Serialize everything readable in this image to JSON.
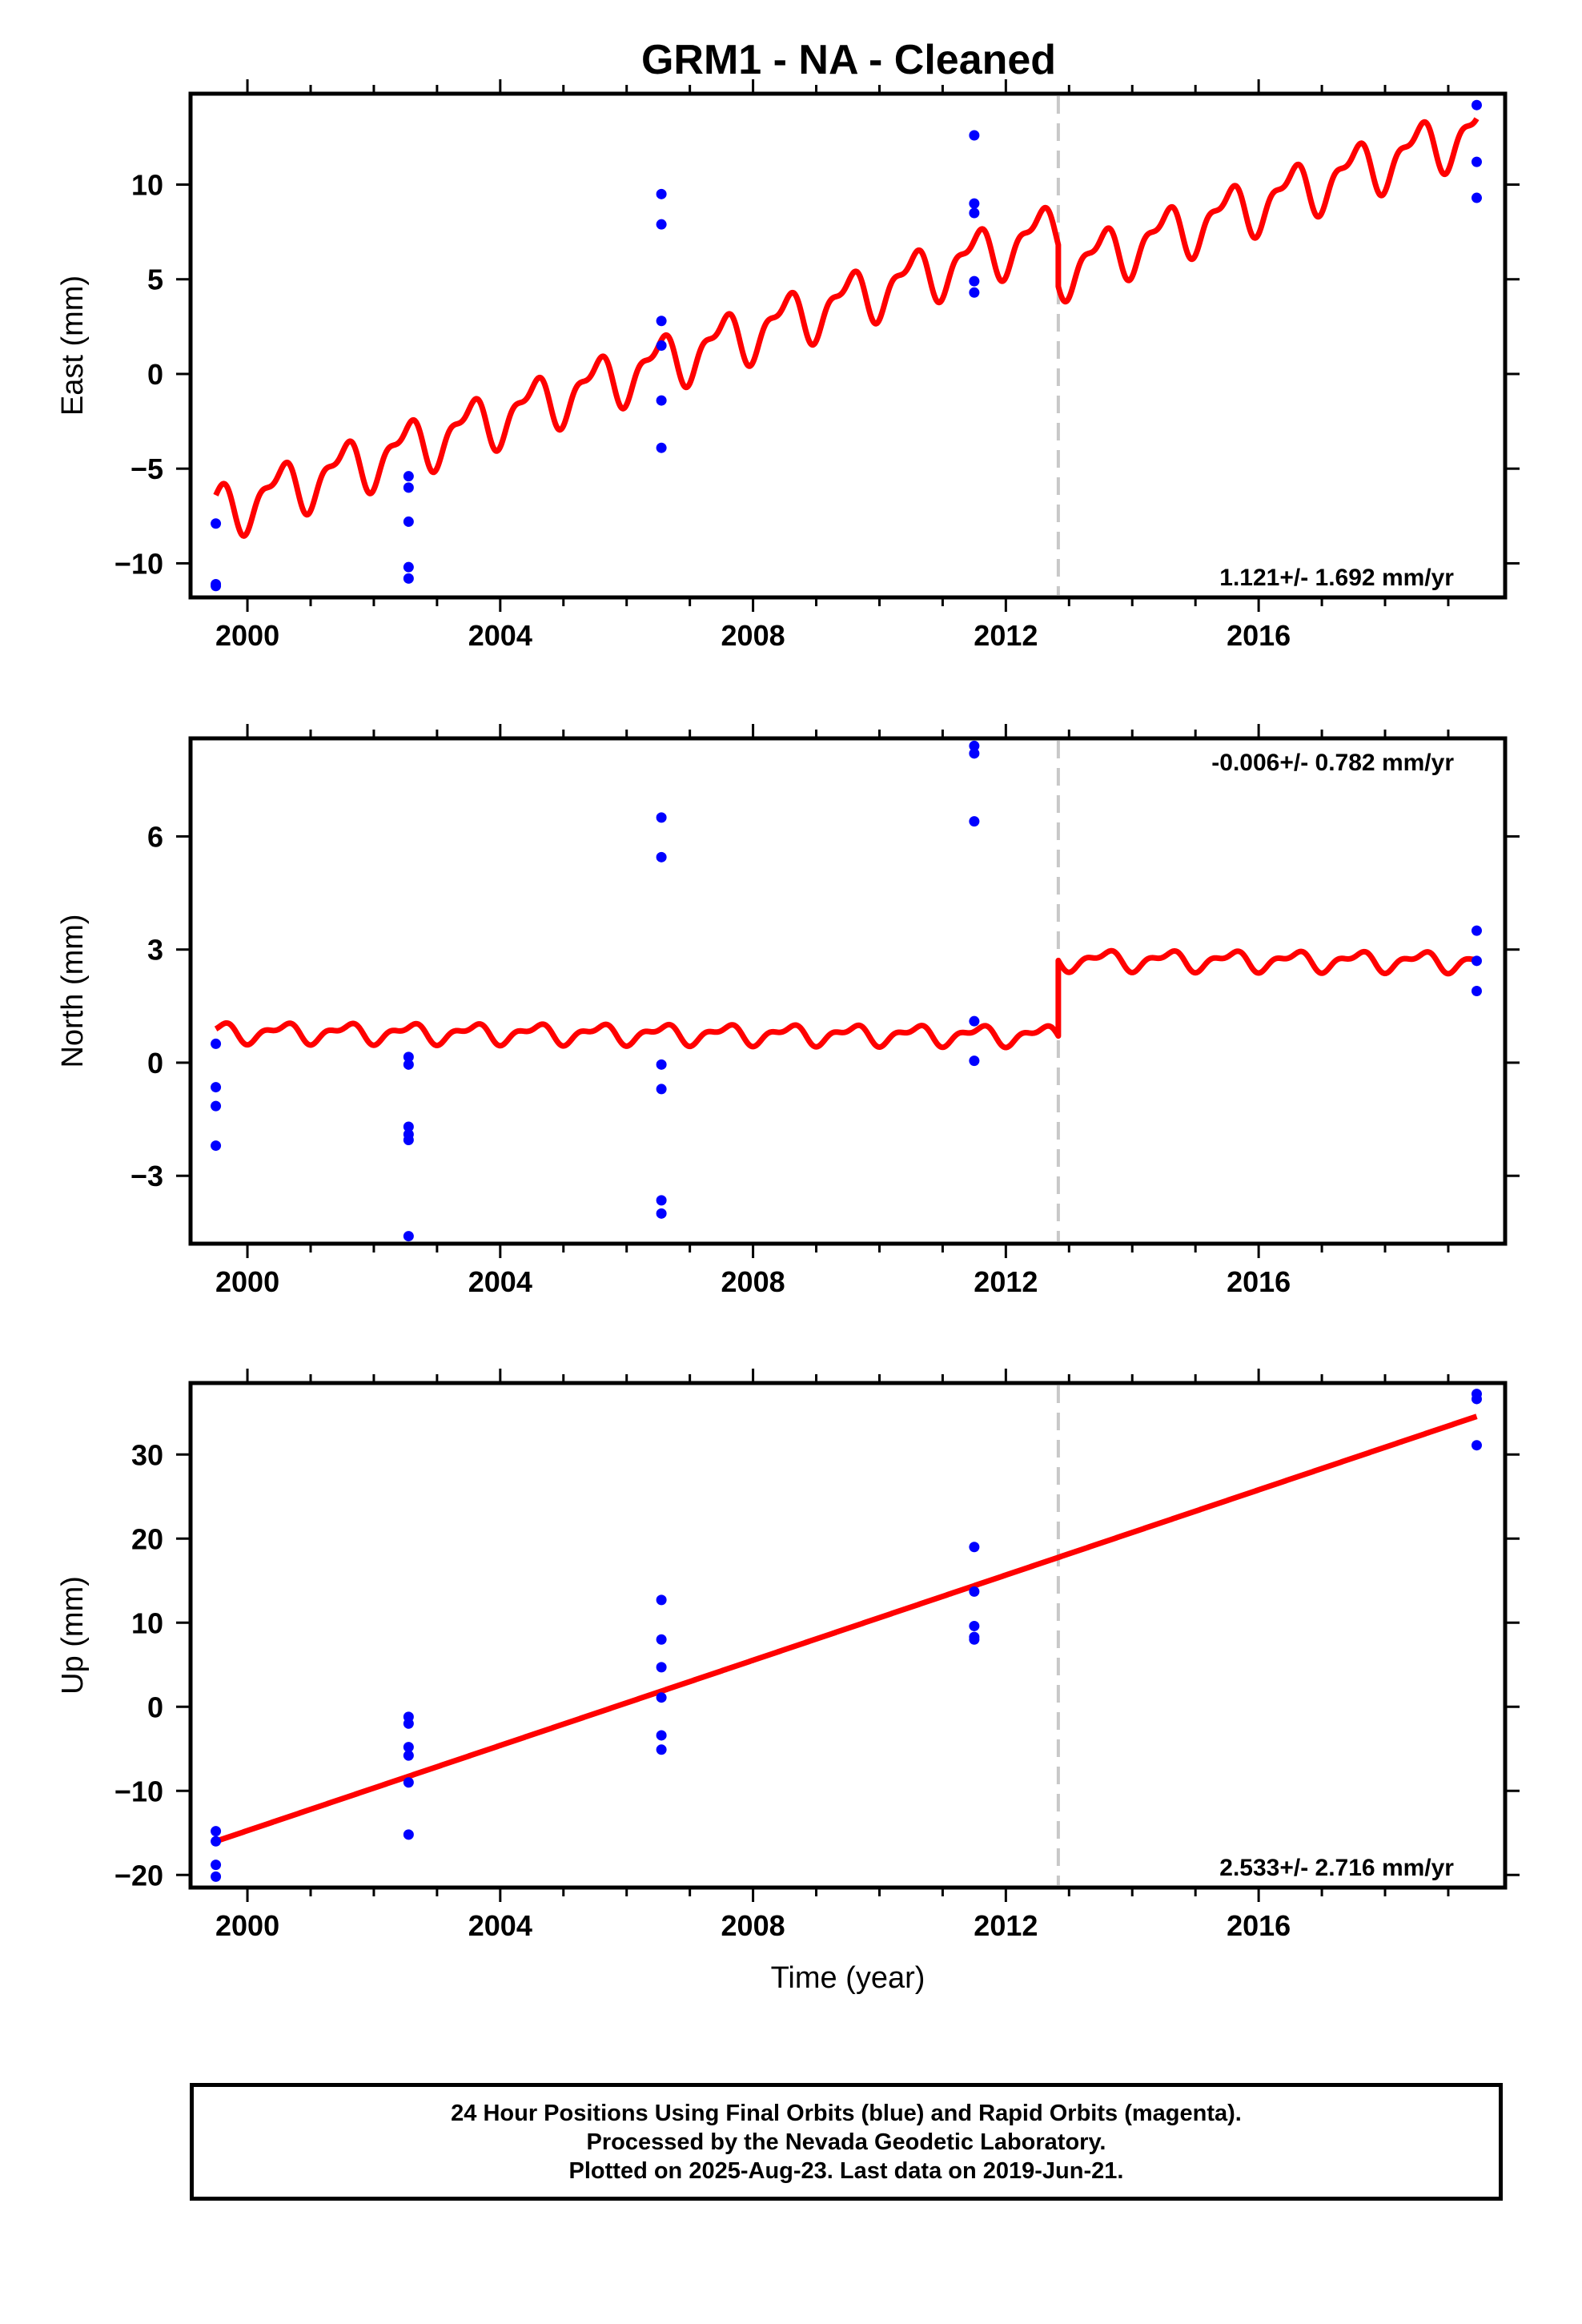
{
  "title": "GRM1  - NA - Cleaned",
  "footer": {
    "line1": "24 Hour Positions Using Final Orbits (blue) and Rapid Orbits (magenta).",
    "line2": "Processed by the Nevada Geodetic Laboratory.",
    "line3": "Plotted on 2025-Aug-23. Last data on 2019-Jun-21."
  },
  "colors": {
    "final_orbit_points": "#0000ff",
    "model_fit": "#ff0000",
    "offset_marker": "#c8c8c8"
  },
  "chart_data": [
    {
      "type": "scatter",
      "panel": "east",
      "ylabel": "East (mm)",
      "xlabel": "",
      "xlim": [
        1999.1,
        2019.9
      ],
      "ylim": [
        -11.8,
        14.8
      ],
      "xticks": [
        2000,
        2004,
        2008,
        2012,
        2016
      ],
      "yticks": [
        -10,
        -5,
        0,
        5,
        10
      ],
      "ytick_labels": [
        "−10",
        "−5",
        "0",
        "5",
        "10"
      ],
      "annotation": "1.121+/- 1.692 mm/yr",
      "annotation_position": "bottom-right",
      "offset_date": 2012.83,
      "points": [
        [
          1999.5,
          -7.9
        ],
        [
          1999.5,
          -11.2
        ],
        [
          1999.5,
          -11.1
        ],
        [
          2002.55,
          -5.4
        ],
        [
          2002.55,
          -6.0
        ],
        [
          2002.55,
          -7.8
        ],
        [
          2002.55,
          -10.2
        ],
        [
          2002.55,
          -10.8
        ],
        [
          2006.55,
          9.5
        ],
        [
          2006.55,
          7.9
        ],
        [
          2006.55,
          2.8
        ],
        [
          2006.55,
          1.5
        ],
        [
          2006.55,
          -1.4
        ],
        [
          2006.55,
          -3.9
        ],
        [
          2011.5,
          12.6
        ],
        [
          2011.5,
          9.0
        ],
        [
          2011.5,
          8.5
        ],
        [
          2011.5,
          4.9
        ],
        [
          2011.5,
          4.3
        ],
        [
          2019.45,
          14.2
        ],
        [
          2019.45,
          11.2
        ],
        [
          2019.45,
          9.3
        ]
      ],
      "model": {
        "rate_mm_per_yr": 1.121,
        "value_at_start": -7.3,
        "annual_amplitude": 1.25,
        "annual_phase_year": 0.25,
        "semiannual_amplitude": 0.6,
        "semiannual_phase_year": 0.05,
        "step_mm": -2.2,
        "start": 1999.5,
        "end": 2019.45
      }
    },
    {
      "type": "scatter",
      "panel": "north",
      "ylabel": "North (mm)",
      "xlabel": "",
      "xlim": [
        1999.1,
        2019.9
      ],
      "ylim": [
        -4.8,
        8.6
      ],
      "xticks": [
        2000,
        2004,
        2008,
        2012,
        2016
      ],
      "yticks": [
        -3,
        0,
        3,
        6
      ],
      "ytick_labels": [
        "−3",
        "0",
        "3",
        "6"
      ],
      "annotation": "-0.006+/- 0.782 mm/yr",
      "annotation_position": "top-right",
      "offset_date": 2012.83,
      "points": [
        [
          1999.5,
          0.5
        ],
        [
          1999.5,
          -0.65
        ],
        [
          1999.5,
          -1.15
        ],
        [
          1999.5,
          -2.2
        ],
        [
          2002.55,
          0.15
        ],
        [
          2002.55,
          -0.05
        ],
        [
          2002.55,
          -1.7
        ],
        [
          2002.55,
          -1.9
        ],
        [
          2002.55,
          -2.05
        ],
        [
          2002.55,
          -4.6
        ],
        [
          2006.55,
          6.5
        ],
        [
          2006.55,
          5.45
        ],
        [
          2006.55,
          -0.05
        ],
        [
          2006.55,
          -0.7
        ],
        [
          2006.55,
          -3.65
        ],
        [
          2006.55,
          -4.0
        ],
        [
          2011.5,
          8.4
        ],
        [
          2011.5,
          8.2
        ],
        [
          2011.5,
          6.4
        ],
        [
          2011.5,
          1.1
        ],
        [
          2011.5,
          0.05
        ],
        [
          2019.45,
          3.5
        ],
        [
          2019.45,
          2.7
        ],
        [
          2019.45,
          1.9
        ]
      ],
      "model": {
        "rate_mm_per_yr": -0.006,
        "value_at_start": 0.8,
        "annual_amplitude": 0.22,
        "annual_phase_year": 0.3,
        "semiannual_amplitude": 0.12,
        "semiannual_phase_year": 0.1,
        "step_mm": 2.0,
        "start": 1999.5,
        "end": 2019.45
      }
    },
    {
      "type": "scatter",
      "panel": "up",
      "ylabel": "Up (mm)",
      "xlabel": "Time (year)",
      "xlim": [
        1999.1,
        2019.9
      ],
      "ylim": [
        -21.5,
        38.5
      ],
      "xticks": [
        2000,
        2004,
        2008,
        2012,
        2016
      ],
      "yticks": [
        -20,
        -10,
        0,
        10,
        20,
        30
      ],
      "ytick_labels": [
        "−20",
        "−10",
        "0",
        "10",
        "20",
        "30"
      ],
      "annotation": "2.533+/- 2.716 mm/yr",
      "annotation_position": "bottom-right",
      "offset_date": 2012.83,
      "points": [
        [
          1999.5,
          -14.8
        ],
        [
          1999.5,
          -16.0
        ],
        [
          1999.5,
          -18.8
        ],
        [
          1999.5,
          -20.2
        ],
        [
          2002.55,
          -1.2
        ],
        [
          2002.55,
          -2.0
        ],
        [
          2002.55,
          -4.8
        ],
        [
          2002.55,
          -5.8
        ],
        [
          2002.55,
          -9.0
        ],
        [
          2002.55,
          -15.2
        ],
        [
          2006.55,
          12.7
        ],
        [
          2006.55,
          8.0
        ],
        [
          2006.55,
          4.7
        ],
        [
          2006.55,
          1.1
        ],
        [
          2006.55,
          -3.4
        ],
        [
          2006.55,
          -5.1
        ],
        [
          2011.5,
          19.0
        ],
        [
          2011.5,
          13.7
        ],
        [
          2011.5,
          9.6
        ],
        [
          2011.5,
          8.3
        ],
        [
          2011.5,
          8.0
        ],
        [
          2019.45,
          37.2
        ],
        [
          2019.45,
          36.6
        ],
        [
          2019.45,
          31.1
        ]
      ],
      "model": {
        "rate_mm_per_yr": 2.533,
        "value_at_start": -16.0,
        "annual_amplitude": 0,
        "annual_phase_year": 0,
        "semiannual_amplitude": 0,
        "semiannual_phase_year": 0,
        "step_mm": 0,
        "start": 1999.5,
        "end": 2019.45
      }
    }
  ]
}
